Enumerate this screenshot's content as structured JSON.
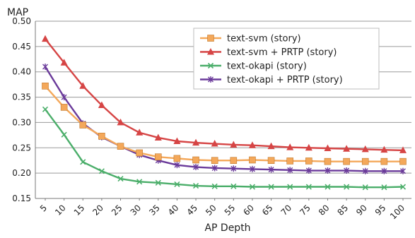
{
  "chart_data": {
    "type": "line",
    "title": "",
    "xlabel": "AP Depth",
    "ylabel": "MAP",
    "x": [
      5,
      10,
      15,
      20,
      25,
      30,
      35,
      40,
      45,
      50,
      55,
      60,
      65,
      70,
      75,
      80,
      85,
      90,
      95,
      100
    ],
    "ylim": [
      0.15,
      0.5
    ],
    "yticks": [
      "0.15",
      "0.20",
      "0.25",
      "0.30",
      "0.35",
      "0.40",
      "0.45",
      "0.50"
    ],
    "xticks": [
      "5",
      "10",
      "15",
      "20",
      "25",
      "30",
      "35",
      "40",
      "45",
      "50",
      "55",
      "60",
      "65",
      "70",
      "75",
      "80",
      "85",
      "90",
      "95",
      "100"
    ],
    "grid": "horizontal",
    "legend_position": "top-right",
    "series": [
      {
        "name": "text-svm (story)",
        "color": "#F4A85A",
        "marker": "square",
        "values": [
          0.372,
          0.33,
          0.295,
          0.273,
          0.253,
          0.24,
          0.232,
          0.229,
          0.226,
          0.225,
          0.225,
          0.226,
          0.225,
          0.224,
          0.224,
          0.223,
          0.223,
          0.223,
          0.223,
          0.223
        ]
      },
      {
        "name": "text-svm + PRTP (story)",
        "color": "#D64545",
        "marker": "triangle",
        "values": [
          0.465,
          0.418,
          0.372,
          0.334,
          0.3,
          0.28,
          0.27,
          0.263,
          0.26,
          0.258,
          0.256,
          0.255,
          0.253,
          0.251,
          0.25,
          0.249,
          0.248,
          0.247,
          0.246,
          0.245
        ]
      },
      {
        "name": "text-okapi (story)",
        "color": "#4BAE6A",
        "marker": "x",
        "values": [
          0.326,
          0.276,
          0.222,
          0.204,
          0.189,
          0.183,
          0.181,
          0.178,
          0.175,
          0.174,
          0.174,
          0.173,
          0.173,
          0.173,
          0.173,
          0.173,
          0.173,
          0.172,
          0.172,
          0.173
        ]
      },
      {
        "name": "text-okapi + PRTP (story)",
        "color": "#6A3A9A",
        "marker": "asterisk",
        "values": [
          0.41,
          0.35,
          0.298,
          0.271,
          0.253,
          0.236,
          0.225,
          0.216,
          0.212,
          0.21,
          0.209,
          0.208,
          0.207,
          0.206,
          0.205,
          0.205,
          0.205,
          0.204,
          0.204,
          0.204
        ]
      }
    ]
  }
}
